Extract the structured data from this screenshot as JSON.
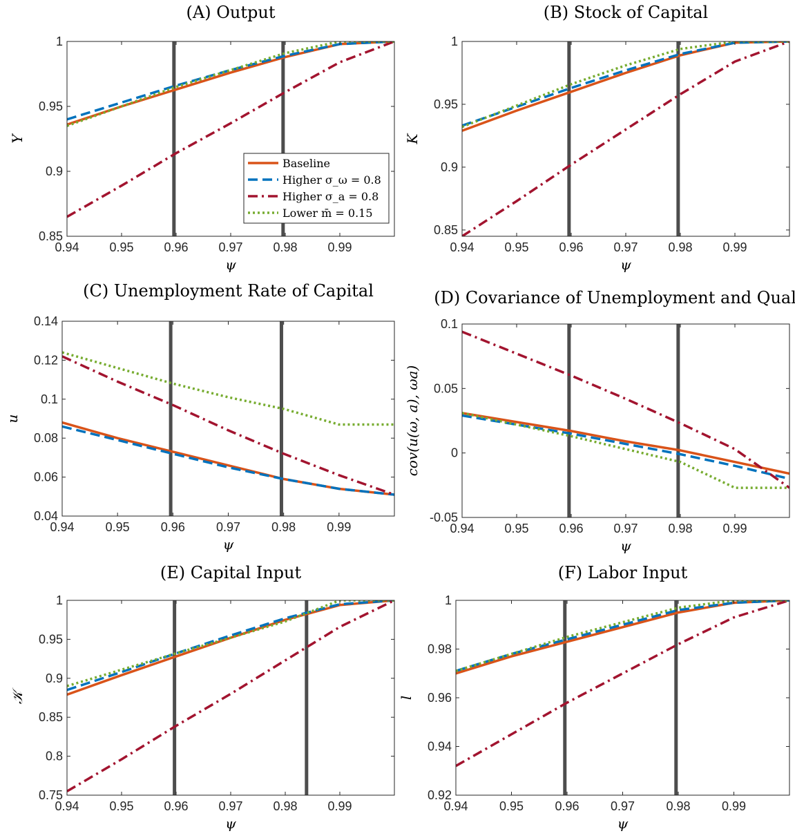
{
  "chart_data": [
    {
      "type": "line",
      "title": "(A) Output",
      "xlabel": "ψ",
      "ylabel": "Y",
      "xlim": [
        0.94,
        1.0
      ],
      "ylim": [
        0.85,
        1.0
      ],
      "xticks": [
        "0.94",
        "0.95",
        "0.96",
        "0.97",
        "0.98",
        "0.99"
      ],
      "yticks": [
        "0.85",
        "0.9",
        "0.95",
        "1"
      ],
      "vlines": [
        0.9596,
        0.9796
      ],
      "legend": {
        "placement": "lower-right",
        "entries": [
          "Baseline",
          "Higher σ_ω = 0.8",
          "Higher σ_a = 0.8",
          "Lower m̄ = 0.15"
        ]
      },
      "x": [
        0.94,
        0.95,
        0.96,
        0.97,
        0.98,
        0.99,
        1.0
      ],
      "series": [
        {
          "name": "Baseline",
          "color": "#D95319",
          "dash": "solid",
          "values": [
            0.936,
            0.95,
            0.963,
            0.976,
            0.988,
            0.998,
            1.0
          ]
        },
        {
          "name": "Higher σ_ω = 0.8",
          "color": "#0072BD",
          "dash": "dashed",
          "values": [
            0.94,
            0.953,
            0.966,
            0.978,
            0.989,
            0.998,
            1.0
          ]
        },
        {
          "name": "Higher σ_a = 0.8",
          "color": "#A2142F",
          "dash": "dashdot",
          "values": [
            0.865,
            0.889,
            0.914,
            0.937,
            0.961,
            0.984,
            1.0
          ]
        },
        {
          "name": "Lower m̄ = 0.15",
          "color": "#77AC30",
          "dash": "dotted",
          "values": [
            0.935,
            0.95,
            0.965,
            0.978,
            0.991,
            1.0,
            1.0
          ]
        }
      ]
    },
    {
      "type": "line",
      "title": "(B) Stock of Capital",
      "xlabel": "ψ",
      "ylabel": "K",
      "xlim": [
        0.94,
        1.0
      ],
      "ylim": [
        0.845,
        1.0
      ],
      "xticks": [
        "0.94",
        "0.95",
        "0.96",
        "0.97",
        "0.98",
        "0.99"
      ],
      "yticks": [
        "0.85",
        "0.9",
        "0.95",
        "1"
      ],
      "vlines": [
        0.9596,
        0.9796
      ],
      "x": [
        0.94,
        0.95,
        0.96,
        0.97,
        0.98,
        0.99,
        1.0
      ],
      "series": [
        {
          "name": "Baseline",
          "color": "#D95319",
          "dash": "solid",
          "values": [
            0.929,
            0.945,
            0.96,
            0.975,
            0.989,
            0.999,
            1.0
          ]
        },
        {
          "name": "Higher σ_ω = 0.8",
          "color": "#0072BD",
          "dash": "dashed",
          "values": [
            0.933,
            0.948,
            0.963,
            0.977,
            0.99,
            0.999,
            1.0
          ]
        },
        {
          "name": "Higher σ_a = 0.8",
          "color": "#A2142F",
          "dash": "dashdot",
          "values": [
            0.845,
            0.873,
            0.902,
            0.93,
            0.958,
            0.984,
            1.0
          ]
        },
        {
          "name": "Lower m̄ = 0.15",
          "color": "#77AC30",
          "dash": "dotted",
          "values": [
            0.932,
            0.949,
            0.966,
            0.981,
            0.994,
            1.0,
            1.0
          ]
        }
      ]
    },
    {
      "type": "line",
      "title": "(C) Unemployment Rate of Capital",
      "xlabel": "ψ",
      "ylabel": "u",
      "xlim": [
        0.94,
        1.0
      ],
      "ylim": [
        0.04,
        0.14
      ],
      "xticks": [
        "0.94",
        "0.95",
        "0.96",
        "0.97",
        "0.98",
        "0.99"
      ],
      "yticks": [
        "0.04",
        "0.06",
        "0.08",
        "0.1",
        "0.12",
        "0.14"
      ],
      "vlines": [
        0.9596,
        0.9796
      ],
      "x": [
        0.94,
        0.95,
        0.96,
        0.97,
        0.98,
        0.99,
        1.0
      ],
      "series": [
        {
          "name": "Baseline",
          "color": "#D95319",
          "dash": "solid",
          "values": [
            0.088,
            0.08,
            0.073,
            0.066,
            0.059,
            0.054,
            0.051
          ]
        },
        {
          "name": "Higher σ_ω = 0.8",
          "color": "#0072BD",
          "dash": "dashed",
          "values": [
            0.086,
            0.079,
            0.072,
            0.065,
            0.059,
            0.054,
            0.051
          ]
        },
        {
          "name": "Higher σ_a = 0.8",
          "color": "#A2142F",
          "dash": "dashdot",
          "values": [
            0.122,
            0.109,
            0.097,
            0.084,
            0.072,
            0.061,
            0.051
          ]
        },
        {
          "name": "Lower m̄ = 0.15",
          "color": "#77AC30",
          "dash": "dotted",
          "values": [
            0.124,
            0.116,
            0.108,
            0.101,
            0.095,
            0.087,
            0.087
          ]
        }
      ]
    },
    {
      "type": "line",
      "title": "(D) Covariance of Unemployment and Quality",
      "xlabel": "ψ",
      "ylabel": "cov(u(ω, a), ωa)",
      "xlim": [
        0.94,
        1.0
      ],
      "ylim": [
        -0.05,
        0.1
      ],
      "xticks": [
        "0.94",
        "0.95",
        "0.96",
        "0.97",
        "0.98",
        "0.99"
      ],
      "yticks": [
        "-0.05",
        "0",
        "0.05",
        "0.1"
      ],
      "vlines": [
        0.9596,
        0.9796
      ],
      "x": [
        0.94,
        0.95,
        0.96,
        0.97,
        0.98,
        0.99,
        1.0
      ],
      "series": [
        {
          "name": "Baseline",
          "color": "#D95319",
          "dash": "solid",
          "values": [
            0.031,
            0.024,
            0.017,
            0.009,
            0.002,
            -0.007,
            -0.016
          ]
        },
        {
          "name": "Higher σ_ω = 0.8",
          "color": "#0072BD",
          "dash": "dashed",
          "values": [
            0.029,
            0.022,
            0.015,
            0.007,
            -0.001,
            -0.01,
            -0.02
          ]
        },
        {
          "name": "Higher σ_a = 0.8",
          "color": "#A2142F",
          "dash": "dashdot",
          "values": [
            0.094,
            0.077,
            0.06,
            0.042,
            0.023,
            0.003,
            -0.027
          ]
        },
        {
          "name": "Lower m̄ = 0.15",
          "color": "#77AC30",
          "dash": "dotted",
          "values": [
            0.031,
            0.022,
            0.013,
            0.003,
            -0.007,
            -0.027,
            -0.027
          ]
        }
      ]
    },
    {
      "type": "line",
      "title": "(E) Capital Input",
      "xlabel": "ψ",
      "ylabel": "𝒦",
      "xlim": [
        0.94,
        1.0
      ],
      "ylim": [
        0.75,
        1.0
      ],
      "xticks": [
        "0.94",
        "0.95",
        "0.96",
        "0.97",
        "0.98",
        "0.99"
      ],
      "yticks": [
        "0.75",
        "0.8",
        "0.85",
        "0.9",
        "0.95",
        "1"
      ],
      "vlines": [
        0.9597,
        0.9839
      ],
      "x": [
        0.94,
        0.95,
        0.96,
        0.97,
        0.98,
        0.99,
        1.0
      ],
      "series": [
        {
          "name": "Baseline",
          "color": "#D95319",
          "dash": "solid",
          "values": [
            0.879,
            0.904,
            0.928,
            0.952,
            0.975,
            0.994,
            1.0
          ]
        },
        {
          "name": "Higher σ_ω = 0.8",
          "color": "#0072BD",
          "dash": "dashed",
          "values": [
            0.885,
            0.908,
            0.932,
            0.955,
            0.977,
            0.995,
            1.0
          ]
        },
        {
          "name": "Higher σ_a = 0.8",
          "color": "#A2142F",
          "dash": "dashdot",
          "values": [
            0.755,
            0.796,
            0.839,
            0.88,
            0.923,
            0.966,
            1.0
          ]
        },
        {
          "name": "Lower m̄ = 0.15",
          "color": "#77AC30",
          "dash": "dotted",
          "values": [
            0.89,
            0.911,
            0.932,
            0.952,
            0.973,
            1.0,
            1.0
          ]
        }
      ]
    },
    {
      "type": "line",
      "title": "(F) Labor Input",
      "xlabel": "ψ",
      "ylabel": "l",
      "xlim": [
        0.94,
        1.0
      ],
      "ylim": [
        0.92,
        1.0
      ],
      "xticks": [
        "0.94",
        "0.95",
        "0.96",
        "0.97",
        "0.98",
        "0.99"
      ],
      "yticks": [
        "0.92",
        "0.94",
        "0.96",
        "0.98",
        "1"
      ],
      "vlines": [
        0.9596,
        0.9796
      ],
      "x": [
        0.94,
        0.95,
        0.96,
        0.97,
        0.98,
        0.99,
        1.0
      ],
      "series": [
        {
          "name": "Baseline",
          "color": "#D95319",
          "dash": "solid",
          "values": [
            0.97,
            0.977,
            0.983,
            0.989,
            0.995,
            0.999,
            1.0
          ]
        },
        {
          "name": "Higher σ_ω = 0.8",
          "color": "#0072BD",
          "dash": "dashed",
          "values": [
            0.971,
            0.978,
            0.984,
            0.99,
            0.996,
            0.999,
            1.0
          ]
        },
        {
          "name": "Higher σ_a = 0.8",
          "color": "#A2142F",
          "dash": "dashdot",
          "values": [
            0.932,
            0.945,
            0.958,
            0.97,
            0.982,
            0.993,
            1.0
          ]
        },
        {
          "name": "Lower m̄ = 0.15",
          "color": "#77AC30",
          "dash": "dotted",
          "values": [
            0.971,
            0.978,
            0.985,
            0.991,
            0.997,
            1.0,
            1.0
          ]
        }
      ]
    }
  ]
}
